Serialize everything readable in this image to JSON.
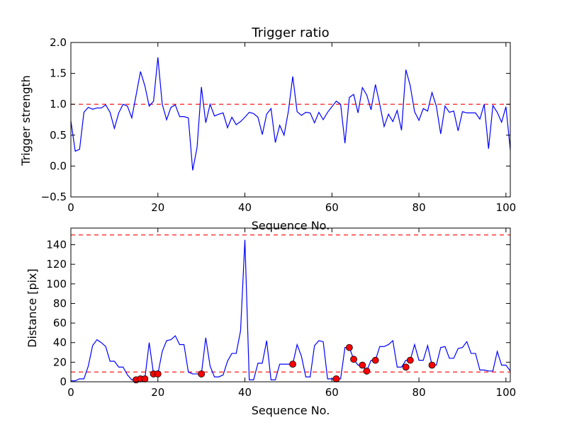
{
  "chart_data": [
    {
      "type": "line",
      "title": "Trigger ratio",
      "xlabel": "Sequence No.",
      "ylabel": "Trigger strength",
      "xlim": [
        0,
        101
      ],
      "ylim": [
        -0.5,
        2.0
      ],
      "xticks": [
        "0",
        "20",
        "40",
        "60",
        "80",
        "100"
      ],
      "yticks": [
        "−0.5",
        "0.0",
        "0.5",
        "1.0",
        "1.5",
        "2.0"
      ],
      "grid": false,
      "line_color": "#0000ff",
      "reference_line": {
        "y": 1.0,
        "color": "#ff0000",
        "style": "dashed"
      },
      "series": [
        {
          "x": [
            0,
            1,
            2,
            3,
            4,
            5,
            6,
            7,
            8,
            9,
            10,
            11,
            12,
            13,
            14,
            15,
            16,
            17,
            18,
            19,
            20,
            21,
            22,
            23,
            24,
            25,
            26,
            27,
            28,
            29,
            30,
            31,
            32,
            33,
            34,
            35,
            36,
            37,
            38,
            39,
            40,
            41,
            42,
            43,
            44,
            45,
            46,
            47,
            48,
            49,
            50,
            51,
            52,
            53,
            54,
            55,
            56,
            57,
            58,
            59,
            60,
            61,
            62,
            63,
            64,
            65,
            66,
            67,
            68,
            69,
            70,
            71,
            72,
            73,
            74,
            75,
            76,
            77,
            78,
            79,
            80,
            81,
            82,
            83,
            84,
            85,
            86,
            87,
            88,
            89,
            90,
            91,
            92,
            93,
            94,
            95,
            96,
            97,
            98,
            99,
            100,
            101
          ],
          "values": [
            0.73,
            0.24,
            0.27,
            0.87,
            0.95,
            0.92,
            0.94,
            0.94,
            0.99,
            0.87,
            0.61,
            0.86,
            1.0,
            0.97,
            0.78,
            1.15,
            1.53,
            1.3,
            0.97,
            1.05,
            1.76,
            1.0,
            0.75,
            0.95,
            0.99,
            0.8,
            0.8,
            0.78,
            -0.07,
            0.3,
            1.28,
            0.7,
            1.0,
            0.81,
            0.84,
            0.86,
            0.62,
            0.79,
            0.67,
            0.72,
            0.79,
            0.87,
            0.85,
            0.79,
            0.51,
            0.84,
            0.93,
            0.38,
            0.66,
            0.5,
            0.89,
            1.45,
            0.88,
            0.82,
            0.87,
            0.86,
            0.7,
            0.87,
            0.75,
            0.87,
            0.96,
            1.05,
            1.0,
            0.37,
            1.11,
            1.16,
            0.86,
            1.27,
            1.15,
            0.91,
            1.32,
            1.0,
            0.64,
            0.84,
            0.72,
            0.9,
            0.58,
            1.56,
            1.3,
            0.88,
            0.74,
            0.93,
            0.89,
            1.19,
            0.97,
            0.52,
            0.97,
            0.87,
            0.89,
            0.57,
            0.88,
            0.86,
            0.86,
            0.86,
            0.76,
            1.0,
            0.28,
            0.98,
            0.87,
            0.71,
            0.96,
            0.26
          ]
        }
      ]
    },
    {
      "type": "line",
      "title": "",
      "xlabel": "Sequence No.",
      "ylabel": "Distance [pix]",
      "xlim": [
        0,
        101
      ],
      "ylim": [
        0,
        157
      ],
      "xticks": [
        "0",
        "20",
        "40",
        "60",
        "80",
        "100"
      ],
      "yticks": [
        "0",
        "20",
        "40",
        "60",
        "80",
        "100",
        "120",
        "140"
      ],
      "grid": false,
      "line_color": "#0000ff",
      "marker_color": "#ff0000",
      "reference_lines": [
        {
          "y": 150,
          "color": "#ff0000",
          "style": "dashed"
        },
        {
          "y": 10,
          "color": "#ff0000",
          "style": "dashed"
        }
      ],
      "series": [
        {
          "x": [
            0,
            1,
            2,
            3,
            4,
            5,
            6,
            7,
            8,
            9,
            10,
            11,
            12,
            13,
            14,
            15,
            16,
            17,
            18,
            19,
            20,
            21,
            22,
            23,
            24,
            25,
            26,
            27,
            28,
            29,
            30,
            31,
            32,
            33,
            34,
            35,
            36,
            37,
            38,
            39,
            40,
            41,
            42,
            43,
            44,
            45,
            46,
            47,
            48,
            49,
            50,
            51,
            52,
            53,
            54,
            55,
            56,
            57,
            58,
            59,
            60,
            61,
            62,
            63,
            64,
            65,
            66,
            67,
            68,
            69,
            70,
            71,
            72,
            73,
            74,
            75,
            76,
            77,
            78,
            79,
            80,
            81,
            82,
            83,
            84,
            85,
            86,
            87,
            88,
            89,
            90,
            91,
            92,
            93,
            94,
            95,
            96,
            97,
            98,
            99,
            100,
            101
          ],
          "values": [
            1,
            1,
            3,
            3,
            16,
            37,
            43,
            40,
            36,
            21,
            21,
            15,
            15,
            7,
            2,
            2,
            3,
            3,
            40,
            8,
            8,
            31,
            42,
            43,
            47,
            38,
            38,
            10,
            8,
            8,
            8,
            45,
            16,
            5,
            5,
            7,
            21,
            29,
            29,
            52,
            145,
            2,
            2,
            19,
            19,
            42,
            2,
            2,
            18,
            18,
            18,
            18,
            38,
            26,
            5,
            5,
            37,
            42,
            41,
            3,
            3,
            3,
            3,
            35,
            35,
            23,
            17,
            17,
            11,
            22,
            22,
            36,
            36,
            38,
            42,
            15,
            15,
            22,
            22,
            38,
            22,
            22,
            37,
            17,
            17,
            35,
            36,
            24,
            24,
            34,
            35,
            41,
            29,
            29,
            12,
            12,
            11,
            11,
            31,
            17,
            17,
            11
          ]
        },
        {
          "name": "",
          "x": [
            15,
            16,
            17,
            19,
            20,
            30,
            51,
            61,
            64,
            65,
            67,
            68,
            70,
            77,
            78,
            83
          ],
          "values": [
            2,
            3,
            3,
            8,
            8,
            8,
            18,
            3,
            35,
            23,
            17,
            11,
            22,
            15,
            22,
            17
          ]
        }
      ]
    }
  ]
}
